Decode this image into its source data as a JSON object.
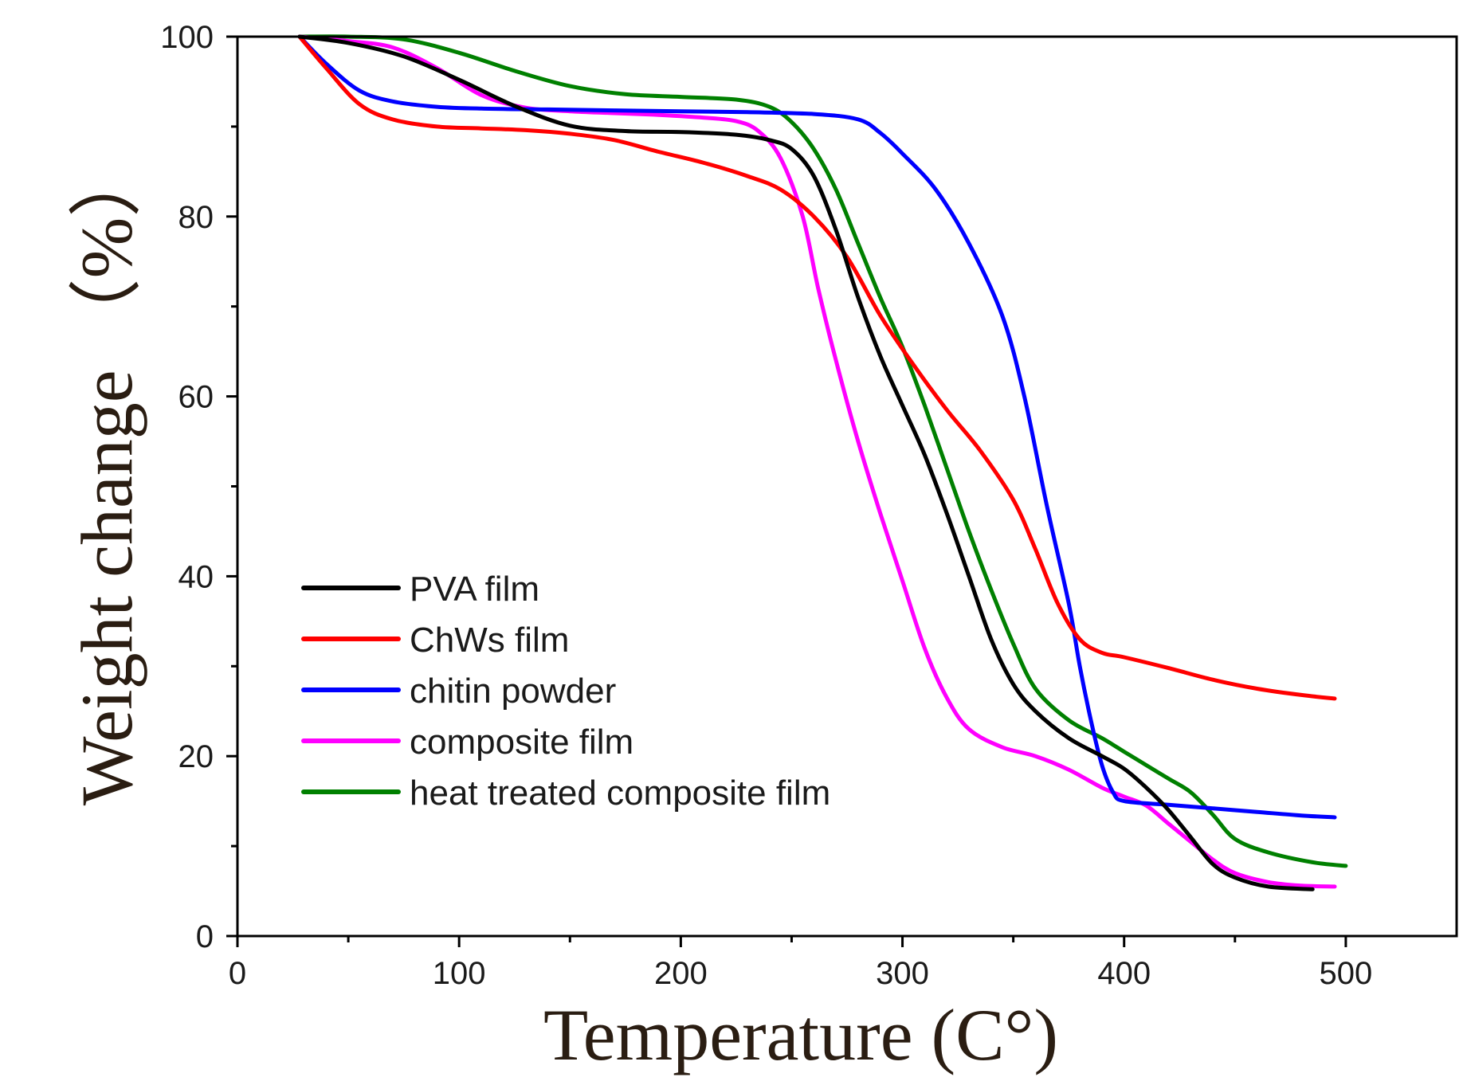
{
  "chart_data": {
    "type": "line",
    "title": "",
    "xlabel": "Temperature (C°)",
    "ylabel": "Weight change （%）",
    "xlim": [
      0,
      550
    ],
    "ylim": [
      0,
      100
    ],
    "xticks": [
      0,
      100,
      200,
      300,
      400,
      500
    ],
    "yticks": [
      0,
      20,
      40,
      60,
      80,
      100
    ],
    "x_minor_ticks": [
      50,
      150,
      250,
      350,
      450
    ],
    "y_minor_ticks": [
      10,
      30,
      50,
      70,
      90
    ],
    "grid": false,
    "legend_position": "lower-left",
    "series": [
      {
        "name": "PVA film",
        "color": "#000000",
        "x": [
          28,
          50,
          75,
          100,
          125,
          150,
          175,
          200,
          225,
          240,
          250,
          260,
          270,
          280,
          290,
          300,
          310,
          320,
          330,
          340,
          350,
          360,
          375,
          390,
          400,
          410,
          420,
          430,
          440,
          450,
          465,
          485
        ],
        "y": [
          100,
          99.3,
          97.8,
          95.2,
          92.3,
          90.1,
          89.5,
          89.4,
          89.1,
          88.5,
          87.5,
          84.5,
          78.5,
          71,
          64.5,
          59,
          53.5,
          47,
          40,
          33,
          28,
          25,
          22,
          20,
          18.6,
          16.5,
          14,
          11,
          8,
          6.5,
          5.5,
          5.2
        ]
      },
      {
        "name": "ChWs film",
        "color": "#ff0000",
        "x": [
          28,
          40,
          55,
          70,
          90,
          110,
          130,
          150,
          170,
          190,
          210,
          230,
          245,
          260,
          275,
          290,
          305,
          320,
          335,
          350,
          360,
          370,
          380,
          390,
          400,
          420,
          440,
          460,
          480,
          495
        ],
        "y": [
          100,
          96.5,
          92.5,
          90.8,
          90,
          89.8,
          89.6,
          89.2,
          88.5,
          87.2,
          86,
          84.5,
          83,
          80,
          75.5,
          69,
          63.5,
          58.5,
          54,
          48.5,
          43,
          37,
          33,
          31.5,
          31,
          29.8,
          28.5,
          27.5,
          26.8,
          26.4
        ]
      },
      {
        "name": "chitin powder",
        "color": "#0000ff",
        "x": [
          28,
          40,
          55,
          70,
          90,
          110,
          140,
          170,
          200,
          230,
          260,
          280,
          290,
          300,
          315,
          330,
          345,
          355,
          365,
          375,
          380,
          385,
          390,
          395,
          400,
          420,
          440,
          460,
          480,
          495
        ],
        "y": [
          100,
          97,
          94,
          92.8,
          92.2,
          92,
          91.9,
          91.8,
          91.7,
          91.6,
          91.4,
          90.8,
          89.3,
          87,
          83,
          77,
          69,
          60,
          48,
          37,
          30,
          24,
          19,
          16,
          15,
          14.6,
          14.2,
          13.8,
          13.4,
          13.2
        ]
      },
      {
        "name": "composite film",
        "color": "#ff00ff",
        "x": [
          28,
          50,
          70,
          90,
          110,
          130,
          150,
          170,
          190,
          210,
          225,
          235,
          245,
          255,
          262,
          270,
          280,
          290,
          300,
          310,
          320,
          330,
          345,
          360,
          375,
          390,
          400,
          410,
          420,
          430,
          440,
          450,
          465,
          480,
          495
        ],
        "y": [
          100,
          99.5,
          98.8,
          96.5,
          93.5,
          92.1,
          91.7,
          91.5,
          91.3,
          91,
          90.6,
          89.5,
          86.5,
          80,
          72,
          64,
          55,
          47,
          39.5,
          32,
          26.5,
          23,
          21,
          20,
          18.5,
          16.5,
          15.5,
          14.5,
          12.5,
          10.5,
          8.5,
          7,
          6,
          5.6,
          5.5
        ]
      },
      {
        "name": "heat treated composite film",
        "color": "#008000",
        "x": [
          28,
          50,
          75,
          100,
          125,
          150,
          175,
          200,
          225,
          240,
          250,
          260,
          270,
          280,
          290,
          300,
          310,
          320,
          330,
          340,
          350,
          360,
          375,
          390,
          400,
          410,
          420,
          430,
          440,
          450,
          465,
          485,
          500
        ],
        "y": [
          100,
          100,
          99.7,
          98.2,
          96.2,
          94.5,
          93.6,
          93.3,
          93,
          92.2,
          90.5,
          87.5,
          83,
          77,
          71,
          65.5,
          59,
          52,
          45,
          38.5,
          32.5,
          27.5,
          24,
          22,
          20.5,
          19,
          17.5,
          16,
          13.5,
          10.8,
          9.3,
          8.2,
          7.8
        ]
      }
    ]
  }
}
